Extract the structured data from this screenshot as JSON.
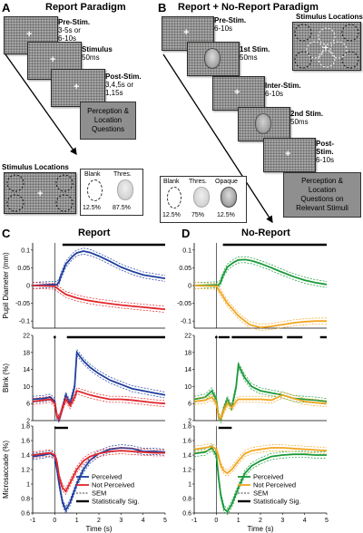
{
  "panel_a": {
    "letter": "A",
    "title": "Report Paradigm",
    "pre_stim": "Pre-Stim.",
    "pre_stim_dur": "3-5s or\n6-10s",
    "stimulus": "Stimulus",
    "stimulus_dur": "50ms",
    "post_stim": "Post-Stim.",
    "post_stim_dur": "3,4,5s or\n1,15s",
    "questions": "Perception &\nLocation\nQuestions",
    "locations_title": "Stimulus Locations",
    "blank": "Blank",
    "thres": "Thres.",
    "blank_pct": "12.5%",
    "thres_pct": "87.5%"
  },
  "panel_b": {
    "letter": "B",
    "title": "Report + No-Report Paradigm",
    "pre_stim": "Pre-Stim.",
    "pre_stim_dur": "6-10s",
    "first_stim": "1st Stim.",
    "first_stim_dur": "50ms",
    "inter_stim": "Inter-Stim.",
    "inter_stim_dur": "6-10s",
    "second_stim": "2nd Stim.",
    "second_stim_dur": "50ms",
    "post_stim": "Post-\nStim.",
    "post_stim_dur": "6-10s",
    "locations_title": "Stimulus Locations",
    "questions": "Perception &\nLocation\nQuestions on\nRelevant Stimuli",
    "blank": "Blank",
    "thres": "Thres.",
    "opaque": "Opaque",
    "blank_pct": "12.5%",
    "thres_pct": "75%",
    "opaque_pct": "12.5%"
  },
  "panel_c": {
    "letter": "C",
    "title": "Report"
  },
  "panel_d": {
    "letter": "D",
    "title": "No-Report"
  },
  "axes": {
    "pupil_ylabel": "Pupil Diameter (mm)",
    "blink_ylabel": "Blink (%)",
    "micro_ylabel": "Microsaccade (%)",
    "xlabel": "Time (s)",
    "x_ticks": [
      "-1",
      "0",
      "1",
      "2",
      "3",
      "4",
      "5"
    ],
    "pupil_ticks": [
      "0.1",
      "0.05",
      "0",
      "-0.05",
      "-0.1"
    ],
    "blink_ticks": [
      "22",
      "18",
      "14",
      "10",
      "6",
      "2"
    ],
    "micro_ticks": [
      "1.8",
      "1.6",
      "1.4",
      "1.2",
      "1",
      "0.8",
      "0.6"
    ]
  },
  "legend": {
    "perceived": "Perceived",
    "not_perceived": "Not Perceived",
    "sem": "SEM",
    "sig": "Statistically Sig."
  },
  "colors": {
    "report_perceived": "#1f3f9e",
    "report_not_perceived": "#e0262b",
    "noreport_perceived": "#1a9a3a",
    "noreport_not_perceived": "#f2a520",
    "question_box": "#8f8f8f"
  },
  "chart_data": [
    {
      "type": "line",
      "panel": "C",
      "row": "pupil",
      "ylim": [
        -0.12,
        0.12
      ],
      "xlim": [
        -1,
        5
      ],
      "series": [
        {
          "name": "Perceived",
          "x": [
            -1,
            -0.5,
            0,
            0.1,
            0.2,
            0.3,
            0.5,
            0.8,
            1,
            1.3,
            1.6,
            2,
            2.5,
            3,
            3.5,
            4,
            4.5,
            5
          ],
          "values": [
            0,
            0.002,
            0.003,
            0.002,
            0.012,
            0.03,
            0.06,
            0.082,
            0.092,
            0.097,
            0.093,
            0.083,
            0.068,
            0.052,
            0.04,
            0.03,
            0.025,
            0.02
          ]
        },
        {
          "name": "Not Perceived",
          "x": [
            -1,
            -0.5,
            0,
            0.2,
            0.5,
            1,
            1.5,
            2,
            2.5,
            3,
            3.5,
            4,
            4.5,
            5
          ],
          "values": [
            0,
            -0.001,
            -0.002,
            -0.012,
            -0.025,
            -0.035,
            -0.042,
            -0.047,
            -0.051,
            -0.055,
            -0.058,
            -0.061,
            -0.064,
            -0.067
          ]
        }
      ],
      "sig_ranges": [
        [
          0.35,
          5
        ]
      ]
    },
    {
      "type": "line",
      "panel": "C",
      "row": "blink",
      "ylim": [
        2,
        22
      ],
      "xlim": [
        -1,
        5
      ],
      "series": [
        {
          "name": "Perceived",
          "x": [
            -1,
            -0.5,
            -0.2,
            0,
            0.1,
            0.2,
            0.35,
            0.5,
            0.7,
            0.9,
            1,
            1.3,
            1.6,
            2,
            2.5,
            3,
            3.5,
            4,
            4.5,
            5
          ],
          "values": [
            7,
            7.2,
            7.5,
            6.5,
            3,
            2.2,
            5,
            8,
            6,
            10,
            18,
            16,
            14.5,
            13,
            11.5,
            10.5,
            9.5,
            9,
            8.5,
            8
          ]
        },
        {
          "name": "Not Perceived",
          "x": [
            -1,
            -0.5,
            -0.2,
            0,
            0.1,
            0.2,
            0.35,
            0.5,
            0.7,
            0.9,
            1,
            1.3,
            1.6,
            2,
            2.5,
            3,
            3.5,
            4,
            4.5,
            5
          ],
          "values": [
            6.5,
            6.8,
            7,
            6,
            3,
            2.5,
            5,
            7,
            5.5,
            7.5,
            9,
            8.5,
            8,
            7.5,
            7,
            7,
            6.8,
            6.5,
            6.2,
            6
          ]
        }
      ],
      "sig_ranges": [
        [
          -0.05,
          0.05
        ],
        [
          0.55,
          5
        ]
      ]
    },
    {
      "type": "line",
      "panel": "C",
      "row": "microsaccade",
      "ylim": [
        0.6,
        1.8
      ],
      "xlim": [
        -1,
        5
      ],
      "series": [
        {
          "name": "Perceived",
          "x": [
            -1,
            -0.5,
            -0.2,
            0,
            0.1,
            0.2,
            0.35,
            0.5,
            0.7,
            1,
            1.3,
            1.6,
            2,
            2.5,
            3,
            3.5,
            4,
            4.5,
            5
          ],
          "values": [
            1.38,
            1.4,
            1.42,
            1.38,
            1.2,
            1.0,
            0.75,
            0.64,
            0.75,
            1.0,
            1.2,
            1.33,
            1.42,
            1.48,
            1.5,
            1.49,
            1.45,
            1.45,
            1.44
          ]
        },
        {
          "name": "Not Perceived",
          "x": [
            -1,
            -0.5,
            -0.2,
            0,
            0.1,
            0.2,
            0.35,
            0.5,
            0.7,
            1,
            1.3,
            1.6,
            2,
            2.5,
            3,
            3.5,
            4,
            4.5,
            5
          ],
          "values": [
            1.4,
            1.42,
            1.43,
            1.4,
            1.3,
            1.1,
            0.95,
            0.9,
            1.02,
            1.2,
            1.32,
            1.38,
            1.42,
            1.45,
            1.46,
            1.45,
            1.44,
            1.43,
            1.43
          ]
        }
      ],
      "sig_ranges": [
        [
          0.0,
          0.6
        ]
      ]
    },
    {
      "type": "line",
      "panel": "D",
      "row": "pupil",
      "ylim": [
        -0.12,
        0.12
      ],
      "xlim": [
        -1,
        5
      ],
      "series": [
        {
          "name": "Perceived",
          "x": [
            -1,
            -0.5,
            0,
            0.1,
            0.2,
            0.3,
            0.5,
            0.8,
            1,
            1.3,
            1.6,
            2,
            2.5,
            3,
            3.5,
            4,
            4.5,
            5
          ],
          "values": [
            0,
            0.001,
            0.002,
            0.001,
            0.01,
            0.028,
            0.052,
            0.066,
            0.072,
            0.073,
            0.07,
            0.062,
            0.05,
            0.037,
            0.025,
            0.015,
            0.008,
            0.003
          ]
        },
        {
          "name": "Not Perceived",
          "x": [
            -1,
            -0.5,
            0,
            0.2,
            0.5,
            1,
            1.5,
            2,
            2.5,
            3,
            3.5,
            4,
            4.5,
            5
          ],
          "values": [
            0,
            -0.001,
            -0.002,
            -0.02,
            -0.05,
            -0.085,
            -0.11,
            -0.118,
            -0.115,
            -0.11,
            -0.105,
            -0.102,
            -0.1,
            -0.1
          ]
        }
      ],
      "sig_ranges": [
        [
          0.3,
          5
        ]
      ]
    },
    {
      "type": "line",
      "panel": "D",
      "row": "blink",
      "ylim": [
        2,
        22
      ],
      "xlim": [
        -1,
        5
      ],
      "series": [
        {
          "name": "Perceived",
          "x": [
            -1,
            -0.5,
            -0.2,
            0,
            0.1,
            0.2,
            0.35,
            0.5,
            0.7,
            0.9,
            1,
            1.3,
            1.6,
            2,
            2.5,
            3,
            3.5,
            4,
            4.5,
            5
          ],
          "values": [
            7,
            7.5,
            9,
            7,
            3,
            2.2,
            5,
            7,
            5,
            10,
            15,
            12,
            10,
            9,
            8.5,
            8,
            7.2,
            7,
            6.8,
            6.5
          ]
        },
        {
          "name": "Not Perceived",
          "x": [
            -1,
            -0.5,
            -0.2,
            0,
            0.1,
            0.2,
            0.35,
            0.5,
            0.7,
            0.9,
            1,
            1.3,
            1.6,
            2,
            2.5,
            3,
            3.5,
            4,
            4.5,
            5
          ],
          "values": [
            6.5,
            6.8,
            7.5,
            6,
            3,
            2.5,
            4.5,
            6,
            5,
            6.5,
            7,
            7,
            7,
            7,
            6.8,
            8,
            7.2,
            6.5,
            6.2,
            6
          ]
        }
      ],
      "sig_ranges": [
        [
          -0.05,
          0.05
        ],
        [
          0.1,
          0.6
        ],
        [
          0.7,
          3.0
        ],
        [
          3.2,
          3.9
        ],
        [
          4.7,
          5
        ]
      ]
    },
    {
      "type": "line",
      "panel": "D",
      "row": "microsaccade",
      "ylim": [
        0.6,
        1.8
      ],
      "xlim": [
        -1,
        5
      ],
      "series": [
        {
          "name": "Perceived",
          "x": [
            -1,
            -0.5,
            -0.2,
            0,
            0.1,
            0.2,
            0.35,
            0.5,
            0.7,
            1,
            1.3,
            1.6,
            2,
            2.5,
            3,
            3.5,
            4,
            4.5,
            5
          ],
          "values": [
            1.42,
            1.44,
            1.5,
            1.4,
            1.1,
            0.85,
            0.66,
            0.62,
            0.72,
            0.95,
            1.15,
            1.25,
            1.32,
            1.38,
            1.4,
            1.41,
            1.41,
            1.4,
            1.4
          ]
        },
        {
          "name": "Not Perceived",
          "x": [
            -1,
            -0.5,
            -0.2,
            0,
            0.1,
            0.2,
            0.35,
            0.5,
            0.7,
            1,
            1.3,
            1.6,
            2,
            2.5,
            3,
            3.5,
            4,
            4.5,
            5
          ],
          "values": [
            1.48,
            1.5,
            1.52,
            1.48,
            1.38,
            1.26,
            1.18,
            1.15,
            1.2,
            1.32,
            1.42,
            1.46,
            1.48,
            1.5,
            1.5,
            1.49,
            1.48,
            1.47,
            1.46
          ]
        }
      ],
      "sig_ranges": [
        [
          0.1,
          0.7
        ]
      ]
    }
  ]
}
